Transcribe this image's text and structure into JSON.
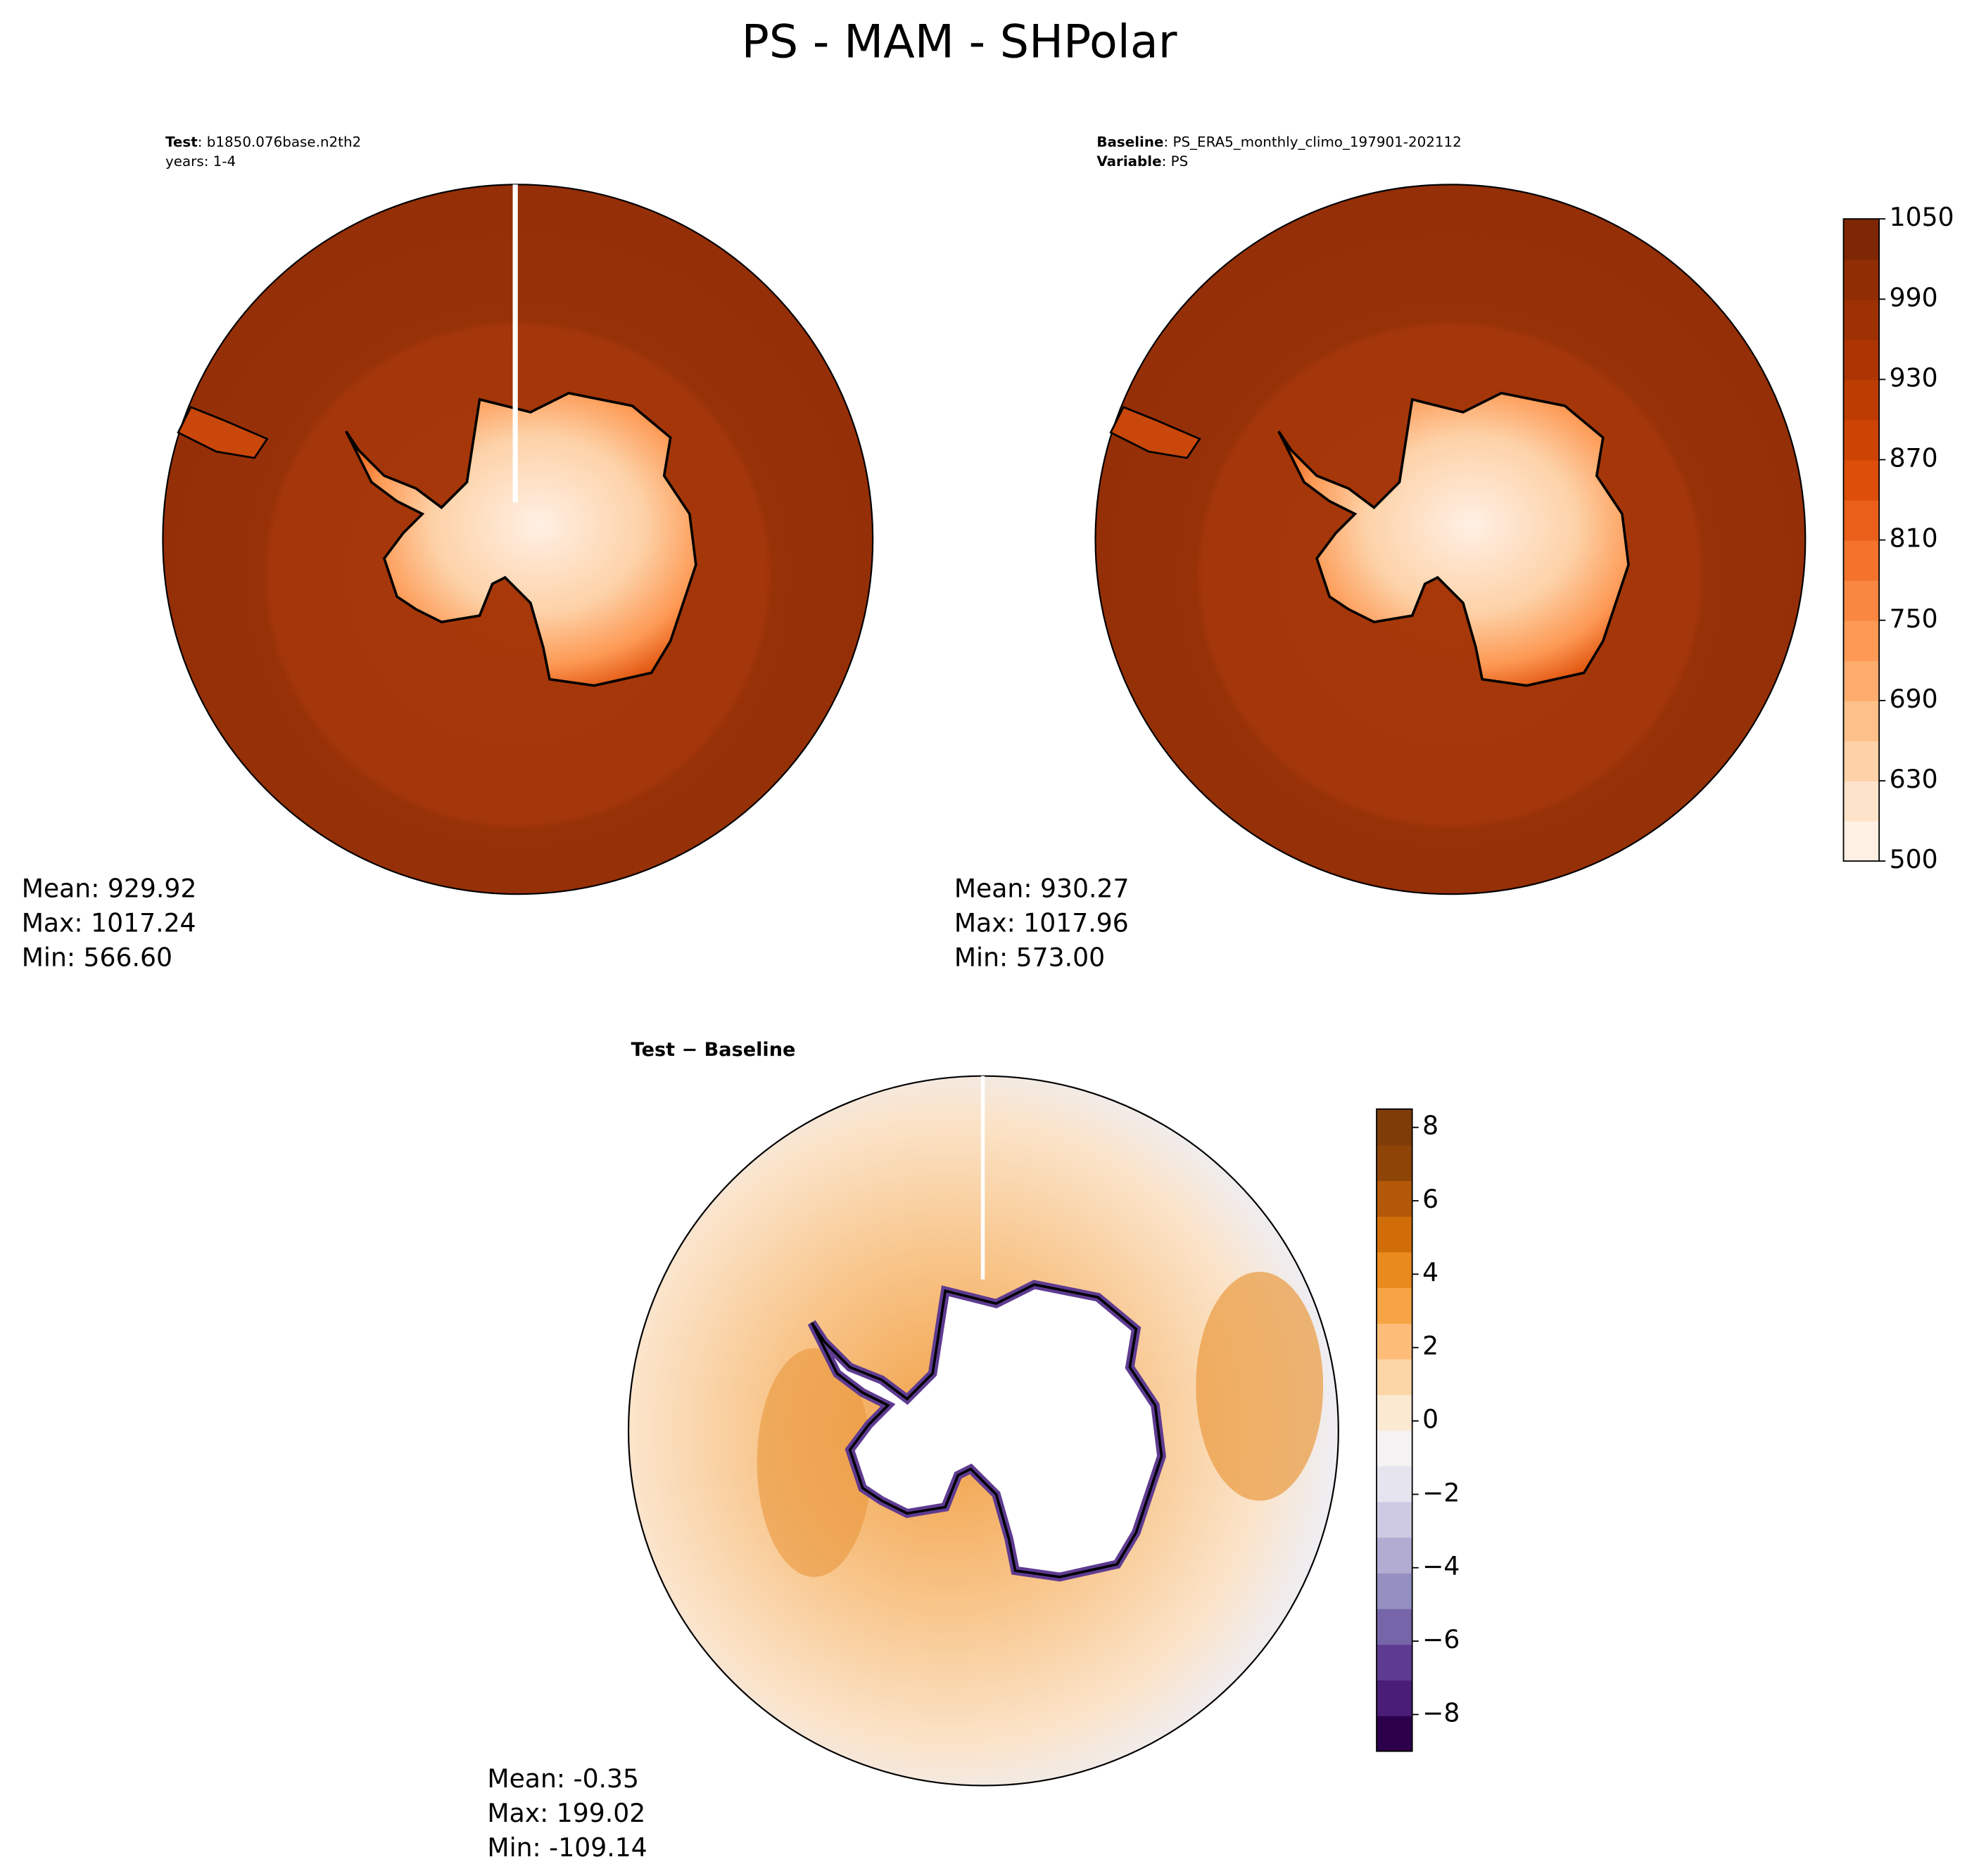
{
  "chart_data": [
    {
      "type": "map",
      "title": "PS - MAM - SHPolar",
      "header": [
        {
          "label": "Test",
          "value": ": b1850.076base.n2th2"
        },
        {
          "label": "",
          "value": "years: 1-4"
        }
      ],
      "stats": [
        "Mean: 929.92",
        "Max: 1017.24",
        "Min: 566.60"
      ]
    },
    {
      "type": "map",
      "header": [
        {
          "label": "Baseline",
          "value": ": PS_ERA5_monthly_climo_197901-202112"
        },
        {
          "label": "Variable",
          "value": ": PS"
        }
      ],
      "stats": [
        "Mean: 930.27",
        "Max: 1017.96",
        "Min: 573.00"
      ],
      "colorbar": {
        "levels": [
          500,
          600,
          630,
          660,
          690,
          720,
          750,
          780,
          810,
          840,
          870,
          900,
          930,
          960,
          990,
          1020,
          1050
        ],
        "colors": [
          "#fff0e4",
          "#fee3cb",
          "#fdd2a8",
          "#fdc089",
          "#fdac6d",
          "#fd9954",
          "#f98641",
          "#f3722c",
          "#ea601b",
          "#dc4e0a",
          "#cd4303",
          "#bc3c02",
          "#ac3503",
          "#9d3103",
          "#902d04",
          "#7f2704"
        ],
        "ylim": [
          500,
          1050
        ],
        "yticks": [
          500,
          630,
          690,
          750,
          810,
          870,
          930,
          990,
          1050
        ]
      }
    },
    {
      "type": "map",
      "title": "Test − Baseline",
      "stats": [
        "Mean: -0.35",
        "Max: 199.02",
        "Min: -109.14"
      ],
      "colorbar": {
        "colors": [
          "#2d004b",
          "#4a1d78",
          "#5e3b91",
          "#7665a8",
          "#9590c2",
          "#b2abd2",
          "#cfcae3",
          "#e6e4ef",
          "#f4f2f2",
          "#fbe9d2",
          "#fdd6a8",
          "#fdbd78",
          "#f7a444",
          "#e98a1c",
          "#d06d09",
          "#b25808",
          "#8e4407",
          "#7f3b08"
        ],
        "ylim": [
          -9,
          8.5
        ],
        "yticks": [
          {
            "value": -8,
            "label": "−8"
          },
          {
            "value": -6,
            "label": "−6"
          },
          {
            "value": -4,
            "label": "−4"
          },
          {
            "value": -2,
            "label": "−2"
          },
          0,
          2,
          4,
          6,
          8
        ]
      }
    }
  ]
}
